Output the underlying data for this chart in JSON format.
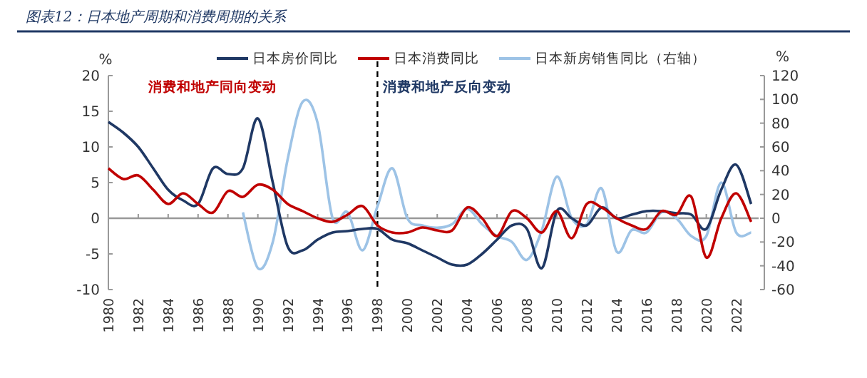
{
  "chart_data": {
    "type": "line",
    "title": "图表12：日本地产周期和消费周期的关系",
    "ylabel": "%",
    "y2label": "%",
    "annotations": [
      "消费和地产同向变动",
      "消费和地产反向变动"
    ],
    "x": [
      1980,
      1981,
      1982,
      1983,
      1984,
      1985,
      1986,
      1987,
      1988,
      1989,
      1990,
      1991,
      1992,
      1993,
      1994,
      1995,
      1996,
      1997,
      1998,
      1999,
      2000,
      2001,
      2002,
      2003,
      2004,
      2005,
      2006,
      2007,
      2008,
      2009,
      2010,
      2011,
      2012,
      2013,
      2014,
      2015,
      2016,
      2017,
      2018,
      2019,
      2020,
      2021,
      2022,
      2023
    ],
    "series": [
      {
        "name": "日本房价同比",
        "color": "#1f3864",
        "values": [
          13.5,
          12,
          10,
          7,
          4,
          2.5,
          2,
          7,
          6.2,
          7,
          14,
          5,
          -4,
          -4.5,
          -3,
          -2,
          -1.8,
          -1.5,
          -1.5,
          -3,
          -3.5,
          -4.5,
          -5.5,
          -6.5,
          -6.5,
          -5,
          -3,
          -1,
          -1.5,
          -7,
          1,
          0,
          -1,
          1.5,
          0,
          0.5,
          1,
          1,
          0.7,
          0.5,
          -1.5,
          4,
          7.5,
          2
        ]
      },
      {
        "name": "日本消费同比",
        "color": "#c00000",
        "values": [
          7,
          5.5,
          6,
          4,
          2,
          3.5,
          2,
          0.8,
          3.8,
          3,
          4.7,
          4,
          2,
          1,
          0,
          -0.5,
          0.5,
          1.7,
          -1,
          -2,
          -2,
          -1.3,
          -1.7,
          -1.7,
          1.5,
          0,
          -2.5,
          1,
          0,
          -2,
          1,
          -2.8,
          2,
          1.5,
          0,
          -1,
          -1.5,
          1,
          0.5,
          3,
          -5.5,
          0,
          3.5,
          -0.5
        ]
      },
      {
        "name": "日本新房销售同比（右轴）",
        "color": "#9dc3e6",
        "axis": "y2",
        "values": [
          null,
          null,
          null,
          null,
          null,
          null,
          null,
          null,
          null,
          5,
          -42,
          -20,
          50,
          98,
          80,
          0,
          5,
          -27,
          10,
          42,
          0,
          -6,
          -8,
          -5,
          8,
          -5,
          -15,
          -20,
          -35,
          -10,
          35,
          0,
          -5,
          25,
          -28,
          -10,
          -12,
          5,
          0,
          -15,
          -15,
          30,
          -12,
          -12
        ]
      }
    ],
    "xlim": [
      1980,
      2023.5
    ],
    "xticks": [
      1980,
      1982,
      1984,
      1986,
      1988,
      1990,
      1992,
      1994,
      1996,
      1998,
      2000,
      2002,
      2004,
      2006,
      2008,
      2010,
      2012,
      2014,
      2016,
      2018,
      2020,
      2022
    ],
    "ylim": [
      -10,
      20
    ],
    "yticks": [
      -10,
      -5,
      0,
      5,
      10,
      15,
      20
    ],
    "y2lim": [
      -60,
      120
    ],
    "y2ticks": [
      -60,
      -40,
      -20,
      0,
      20,
      40,
      60,
      80,
      100,
      120
    ],
    "ref_lines": [
      {
        "axis": "x",
        "value": 1998,
        "color": "#000000",
        "line_style": "dashed"
      }
    ],
    "legend": "top",
    "grid": false,
    "marker": "none",
    "line_style": "solid"
  }
}
